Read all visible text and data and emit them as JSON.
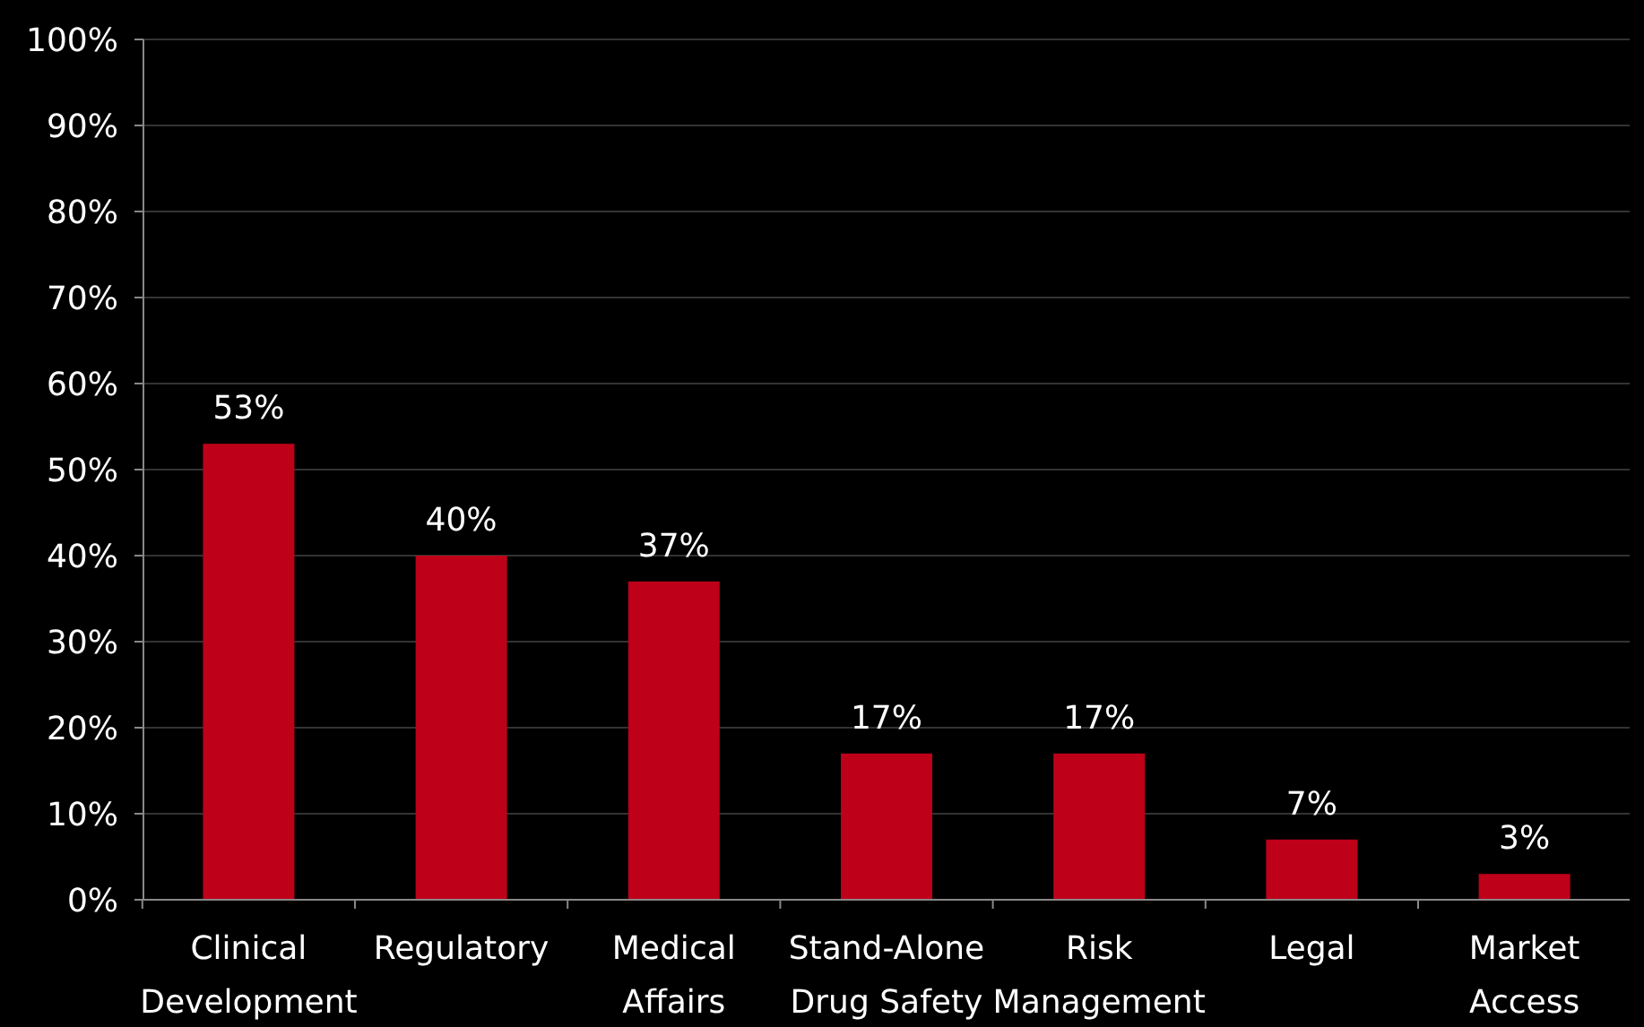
{
  "chart_data": {
    "type": "bar",
    "categories": [
      "Clinical Development",
      "Regulatory",
      "Medical Affairs",
      "Stand-Alone Drug Safety",
      "Risk Management",
      "Legal",
      "Market Access"
    ],
    "values": [
      53,
      40,
      37,
      17,
      17,
      7,
      3
    ],
    "value_labels": [
      "53%",
      "40%",
      "37%",
      "17%",
      "17%",
      "7%",
      "3%"
    ],
    "color": "#be0019",
    "ylim": [
      0,
      100
    ],
    "yticks": [
      {
        "value": 0,
        "label": "0%"
      },
      {
        "value": 10,
        "label": "10%"
      },
      {
        "value": 20,
        "label": "20%"
      },
      {
        "value": 30,
        "label": "30%"
      },
      {
        "value": 40,
        "label": "40%"
      },
      {
        "value": 50,
        "label": "50%"
      },
      {
        "value": 60,
        "label": "60%"
      },
      {
        "value": 70,
        "label": "70%"
      },
      {
        "value": 80,
        "label": "80%"
      },
      {
        "value": 90,
        "label": "90%"
      },
      {
        "value": 100,
        "label": "100%"
      }
    ],
    "grid": "y"
  }
}
